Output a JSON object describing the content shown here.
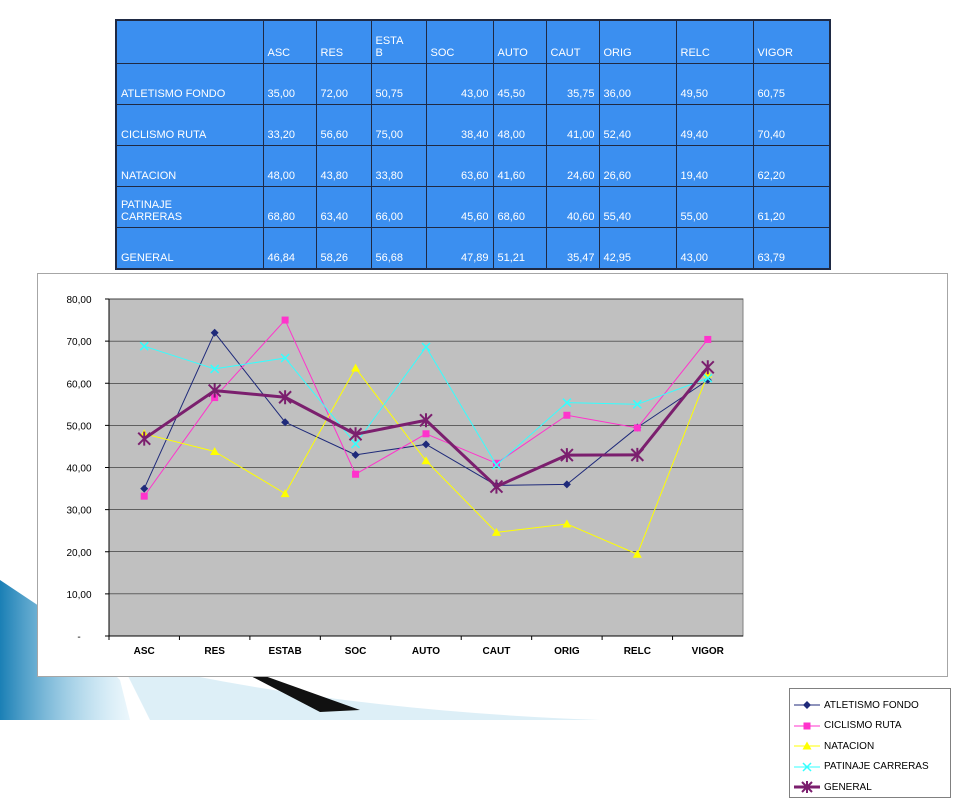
{
  "table": {
    "headers": [
      "",
      "ASC",
      "RES",
      "ESTA\nB",
      "SOC",
      "AUTO",
      "CAUT",
      "ORIG",
      "RELC",
      "VIGOR"
    ],
    "rows": [
      {
        "label": "ATLETISMO FONDO",
        "values": [
          "35,00",
          "72,00",
          "50,75",
          "43,00",
          "45,50",
          "35,75",
          "36,00",
          "49,50",
          "60,75"
        ]
      },
      {
        "label": "CICLISMO RUTA",
        "values": [
          "33,20",
          "56,60",
          "75,00",
          "38,40",
          "48,00",
          "41,00",
          "52,40",
          "49,40",
          "70,40"
        ]
      },
      {
        "label": "NATACION",
        "values": [
          "48,00",
          "43,80",
          "33,80",
          "63,60",
          "41,60",
          "24,60",
          "26,60",
          "19,40",
          "62,20"
        ]
      },
      {
        "label": "PATINAJE\nCARRERAS",
        "values": [
          "68,80",
          "63,40",
          "66,00",
          "45,60",
          "68,60",
          "40,60",
          "55,40",
          "55,00",
          "61,20"
        ]
      },
      {
        "label": "GENERAL",
        "values": [
          "46,84",
          "58,26",
          "56,68",
          "47,89",
          "51,21",
          "35,47",
          "42,95",
          "43,00",
          "63,79"
        ]
      }
    ]
  },
  "chart_data": {
    "type": "line",
    "title": "",
    "xlabel": "",
    "ylabel": "",
    "categories": [
      "ASC",
      "RES",
      "ESTAB",
      "SOC",
      "AUTO",
      "CAUT",
      "ORIG",
      "RELC",
      "VIGOR"
    ],
    "ylim": [
      0,
      80
    ],
    "yticks": [
      0,
      10,
      20,
      30,
      40,
      50,
      60,
      70,
      80
    ],
    "ytick_labels": [
      "-",
      "10,00",
      "20,00",
      "30,00",
      "40,00",
      "50,00",
      "60,00",
      "70,00",
      "80,00"
    ],
    "grid": true,
    "plot_background": "#c0c0c0",
    "legend_position": "right",
    "series": [
      {
        "name": "ATLETISMO FONDO",
        "color": "#1f2a7a",
        "marker": "diamond",
        "width": 1,
        "values": [
          35.0,
          72.0,
          50.75,
          43.0,
          45.5,
          35.75,
          36.0,
          49.5,
          60.75
        ]
      },
      {
        "name": "CICLISMO RUTA",
        "color": "#ff33cc",
        "marker": "square",
        "width": 1,
        "values": [
          33.2,
          56.6,
          75.0,
          38.4,
          48.0,
          41.0,
          52.4,
          49.4,
          70.4
        ]
      },
      {
        "name": "NATACION",
        "color": "#ffff00",
        "marker": "triangle",
        "width": 1,
        "values": [
          48.0,
          43.8,
          33.8,
          63.6,
          41.6,
          24.6,
          26.6,
          19.4,
          62.2
        ]
      },
      {
        "name": "PATINAJE CARRERAS",
        "color": "#33ffff",
        "marker": "x",
        "width": 1,
        "values": [
          68.8,
          63.4,
          66.0,
          45.6,
          68.6,
          40.6,
          55.4,
          55.0,
          61.2
        ]
      },
      {
        "name": "GENERAL",
        "color": "#7b1f6e",
        "marker": "star",
        "width": 3,
        "values": [
          46.84,
          58.26,
          56.68,
          47.89,
          51.21,
          35.47,
          42.95,
          43.0,
          63.79
        ]
      }
    ]
  }
}
